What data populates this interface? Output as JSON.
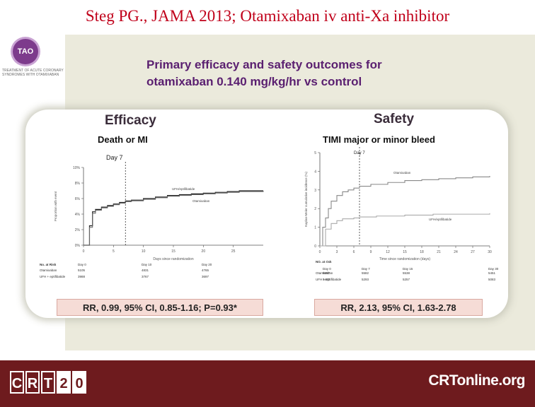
{
  "slide_title": "Steg PG., JAMA 2013; Otamixaban iv anti-Xa inhibitor",
  "logo": {
    "text": "TAO",
    "subtitle": "TREATMENT OF ACUTE CORONARY SYNDROMES WITH OTAMIXABAN"
  },
  "heading": {
    "line1": "Primary efficacy and safety  outcomes for",
    "line2": "otamixaban 0.140 mg/kg/hr vs control"
  },
  "efficacy": {
    "header": "Efficacy",
    "subheader": "Death or MI",
    "rr_text": "RR, 0.99, 95% CI, 0.85-1.16; P=0.93*"
  },
  "safety": {
    "header": "Safety",
    "subheader": "TIMI major or minor bleed",
    "rr_text": "RR, 2.13, 95% CI, 1.63-2.78"
  },
  "footer": {
    "crt_letters": [
      "C",
      "R",
      "T",
      "2",
      "0"
    ],
    "crtonline": "CRTonline.org"
  },
  "colors": {
    "title_red": "#c0001a",
    "heading_purple": "#5a1f70",
    "footer_maroon": "#6e1b1e",
    "slide_bg": "#ebeadc",
    "rr_box": "#f6dcd6"
  },
  "chart_data": [
    {
      "type": "line",
      "title": "Death or MI",
      "xlabel": "Days since randomization",
      "ylabel": "Proportion with event",
      "xlim": [
        0,
        30
      ],
      "ylim": [
        0,
        10
      ],
      "x_ticks": [
        "0",
        "5",
        "10",
        "15",
        "20",
        "25"
      ],
      "y_ticks": [
        "0%",
        "2%",
        "4%",
        "6%",
        "8%",
        "10%"
      ],
      "marker_label": "Day 7",
      "marker_x": 7,
      "series": [
        {
          "name": "UFH/eptifibatide",
          "x": [
            0,
            1,
            1.5,
            2,
            3,
            4,
            5,
            6,
            7,
            8,
            10,
            12,
            14,
            16,
            18,
            20,
            22,
            24,
            26,
            28,
            30
          ],
          "y": [
            0,
            2.5,
            4.3,
            4.6,
            4.9,
            5.1,
            5.3,
            5.5,
            5.7,
            5.8,
            6.0,
            6.2,
            6.4,
            6.5,
            6.6,
            6.7,
            6.8,
            6.9,
            7.0,
            7.0,
            7.0
          ]
        },
        {
          "name": "Otamixaban",
          "x": [
            0,
            1,
            1.5,
            2,
            3,
            4,
            5,
            6,
            7,
            8,
            10,
            12,
            14,
            16,
            18,
            20,
            22,
            24,
            26,
            28,
            30
          ],
          "y": [
            0,
            2.3,
            4.1,
            4.5,
            4.8,
            5.0,
            5.2,
            5.4,
            5.6,
            5.7,
            5.9,
            6.1,
            6.3,
            6.4,
            6.5,
            6.6,
            6.7,
            6.8,
            6.9,
            6.9,
            7.0
          ]
        }
      ],
      "risk_table": {
        "header": "No. at Risk",
        "columns": [
          "Day 0",
          "Day 10",
          "Day 20"
        ],
        "rows": [
          {
            "label": "Otamixaban",
            "values": [
              "5105",
              "4831",
              "4765"
            ]
          },
          {
            "label": "UFH + eptifibatide",
            "values": [
              "3988",
              "3767",
              "3697"
            ]
          }
        ]
      }
    },
    {
      "type": "line",
      "title": "TIMI major or minor bleed",
      "xlabel": "Time since randomization (days)",
      "ylabel": "Kaplan-Meier cumulative incidence (%)",
      "xlim": [
        0,
        30
      ],
      "ylim": [
        0,
        5
      ],
      "x_ticks": [
        "0",
        "3",
        "6",
        "9",
        "12",
        "15",
        "18",
        "21",
        "24",
        "27",
        "30"
      ],
      "y_ticks": [
        "0",
        "1",
        "2",
        "3",
        "4",
        "5"
      ],
      "marker_label": "Day 7",
      "marker_x": 7,
      "series": [
        {
          "name": "Otamixaban",
          "x": [
            0,
            0.5,
            1,
            1.5,
            2,
            3,
            4,
            5,
            6,
            7,
            9,
            12,
            15,
            18,
            21,
            24,
            27,
            30
          ],
          "y": [
            0,
            1.0,
            1.5,
            2.0,
            2.4,
            2.7,
            2.9,
            3.0,
            3.1,
            3.2,
            3.3,
            3.4,
            3.5,
            3.55,
            3.6,
            3.65,
            3.7,
            3.75
          ]
        },
        {
          "name": "UFH/eptifibatide",
          "x": [
            0,
            1,
            2,
            3,
            4,
            6,
            7,
            10,
            15,
            20,
            25,
            30
          ],
          "y": [
            0,
            0.9,
            1.2,
            1.35,
            1.45,
            1.5,
            1.55,
            1.6,
            1.65,
            1.7,
            1.7,
            1.75
          ]
        }
      ],
      "risk_table": {
        "header": "NO. at risk",
        "columns": [
          "Day 0",
          "Day 7",
          "Day 15",
          "Day 30"
        ],
        "rows": [
          {
            "label": "Otamixaban",
            "values": [
              "5857",
              "5582",
              "5538",
              "5451"
            ]
          },
          {
            "label": "UFH + eptifibatide",
            "values": [
              "5403",
              "5293",
              "5257",
              "5083"
            ]
          }
        ]
      }
    }
  ]
}
